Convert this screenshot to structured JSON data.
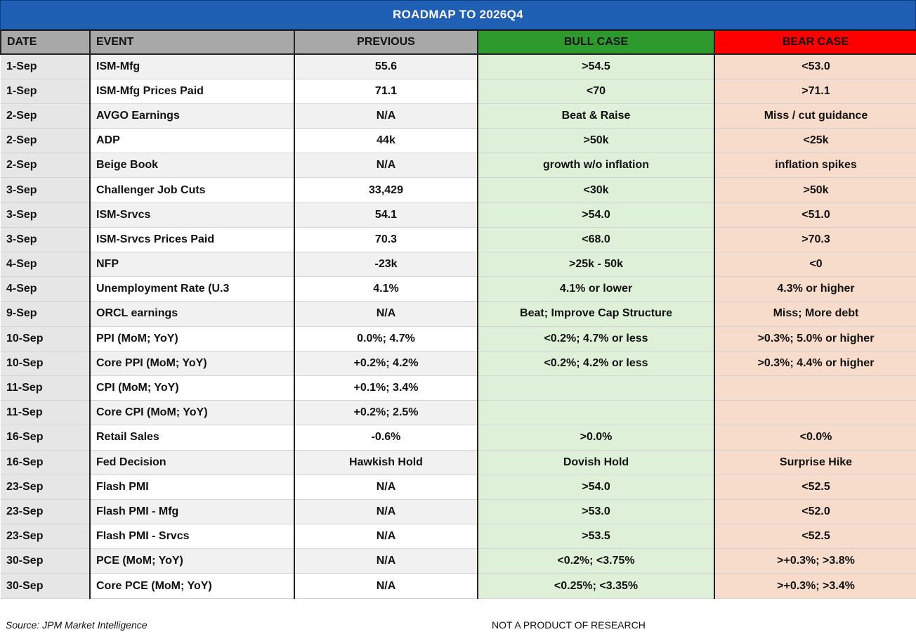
{
  "title": "ROADMAP TO 2026Q4",
  "headers": {
    "date": "DATE",
    "event": "EVENT",
    "previous": "PREVIOUS",
    "bull": "BULL CASE",
    "bear": "BEAR CASE"
  },
  "colors": {
    "banner": "#1f5fb4",
    "bull_header": "#2e9a2e",
    "bear_header": "#ff0000",
    "bull_fill": "#dff0d8",
    "bear_fill": "#f8dccb"
  },
  "rows": [
    {
      "date": "1-Sep",
      "event": "ISM-Mfg",
      "previous": "55.6",
      "bull": ">54.5",
      "bear": "<53.0"
    },
    {
      "date": "1-Sep",
      "event": "ISM-Mfg Prices Paid",
      "previous": "71.1",
      "bull": "<70",
      "bear": ">71.1"
    },
    {
      "date": "2-Sep",
      "event": "AVGO Earnings",
      "previous": "N/A",
      "bull": "Beat & Raise",
      "bear": "Miss / cut guidance"
    },
    {
      "date": "2-Sep",
      "event": "ADP",
      "previous": "44k",
      "bull": ">50k",
      "bear": "<25k"
    },
    {
      "date": "2-Sep",
      "event": "Beige Book",
      "previous": "N/A",
      "bull": "growth w/o inflation",
      "bear": "inflation spikes"
    },
    {
      "date": "3-Sep",
      "event": "Challenger Job Cuts",
      "previous": "33,429",
      "bull": "<30k",
      "bear": ">50k"
    },
    {
      "date": "3-Sep",
      "event": "ISM-Srvcs",
      "previous": "54.1",
      "bull": ">54.0",
      "bear": "<51.0"
    },
    {
      "date": "3-Sep",
      "event": "ISM-Srvcs Prices Paid",
      "previous": "70.3",
      "bull": "<68.0",
      "bear": ">70.3"
    },
    {
      "date": "4-Sep",
      "event": "NFP",
      "previous": "-23k",
      "bull": ">25k - 50k",
      "bear": "<0"
    },
    {
      "date": "4-Sep",
      "event": "Unemployment Rate (U.3",
      "previous": "4.1%",
      "bull": "4.1% or lower",
      "bear": "4.3% or higher"
    },
    {
      "date": "9-Sep",
      "event": "ORCL earnings",
      "previous": "N/A",
      "bull": "Beat; Improve Cap Structure",
      "bear": "Miss; More debt"
    },
    {
      "date": "10-Sep",
      "event": "PPI (MoM; YoY)",
      "previous": "0.0%; 4.7%",
      "bull": "<0.2%; 4.7% or less",
      "bear": ">0.3%; 5.0% or higher"
    },
    {
      "date": "10-Sep",
      "event": "Core PPI (MoM; YoY)",
      "previous": "+0.2%; 4.2%",
      "bull": "<0.2%; 4.2% or less",
      "bear": ">0.3%; 4.4% or higher"
    },
    {
      "date": "11-Sep",
      "event": "CPI (MoM; YoY)",
      "previous": "+0.1%; 3.4%",
      "bull": "",
      "bear": ""
    },
    {
      "date": "11-Sep",
      "event": "Core CPI (MoM; YoY)",
      "previous": "+0.2%; 2.5%",
      "bull": "",
      "bear": ""
    },
    {
      "date": "16-Sep",
      "event": "Retail Sales",
      "previous": "-0.6%",
      "bull": ">0.0%",
      "bear": "<0.0%"
    },
    {
      "date": "16-Sep",
      "event": "Fed Decision",
      "previous": "Hawkish Hold",
      "bull": "Dovish Hold",
      "bear": "Surprise Hike"
    },
    {
      "date": "23-Sep",
      "event": "Flash PMI",
      "previous": "N/A",
      "bull": ">54.0",
      "bear": "<52.5"
    },
    {
      "date": "23-Sep",
      "event": "Flash PMI - Mfg",
      "previous": "N/A",
      "bull": ">53.0",
      "bear": "<52.0"
    },
    {
      "date": "23-Sep",
      "event": "Flash PMI - Srvcs",
      "previous": "N/A",
      "bull": ">53.5",
      "bear": "<52.5"
    },
    {
      "date": "30-Sep",
      "event": "PCE (MoM; YoY)",
      "previous": "N/A",
      "bull": "<0.2%; <3.75%",
      "bear": ">+0.3%; >3.8%"
    },
    {
      "date": "30-Sep",
      "event": "Core PCE (MoM; YoY)",
      "previous": "N/A",
      "bull": "<0.25%; <3.35%",
      "bear": ">+0.3%; >3.4%"
    }
  ],
  "footer": {
    "source": "Source: JPM Market Intelligence",
    "disclaimer": "NOT A PRODUCT OF RESEARCH"
  }
}
